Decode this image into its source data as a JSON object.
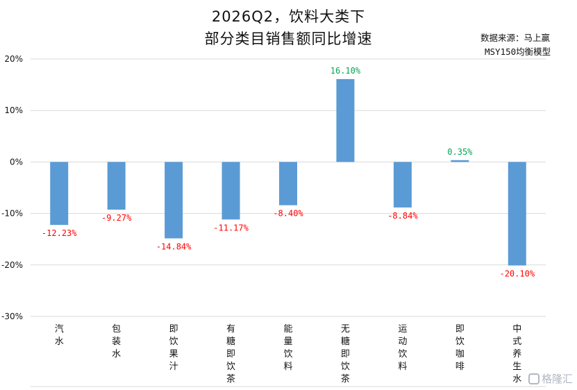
{
  "chart_data": {
    "type": "bar",
    "title": "2026Q2，饮料大类下",
    "subtitle": "部分类目销售额同比增速",
    "source_line1": "数据来源：马上赢",
    "source_line2": "MSY150均衡模型",
    "categories": [
      "汽水",
      "包装水",
      "即饮果汁",
      "有糖即饮茶",
      "能量饮料",
      "无糖即饮茶",
      "运动饮料",
      "即饮咖啡",
      "中式养生水"
    ],
    "values": [
      -12.23,
      -9.27,
      -14.84,
      -11.17,
      -8.4,
      16.1,
      -8.84,
      0.35,
      -20.1
    ],
    "data_labels": [
      "-12.23%",
      "-9.27%",
      "-14.84%",
      "-11.17%",
      "-8.40%",
      "16.10%",
      "-8.84%",
      "0.35%",
      "-20.10%"
    ],
    "yticks": [
      "20%",
      "10%",
      "0%",
      "-10%",
      "-20%",
      "-30%"
    ],
    "ylim": [
      -30,
      20
    ],
    "grid": true,
    "colors": {
      "bar": "#5b9bd5",
      "positive_label": "#00a651",
      "negative_label": "#ff0000",
      "grid": "#d9d9d9"
    }
  },
  "watermark": {
    "text": "格隆汇"
  }
}
